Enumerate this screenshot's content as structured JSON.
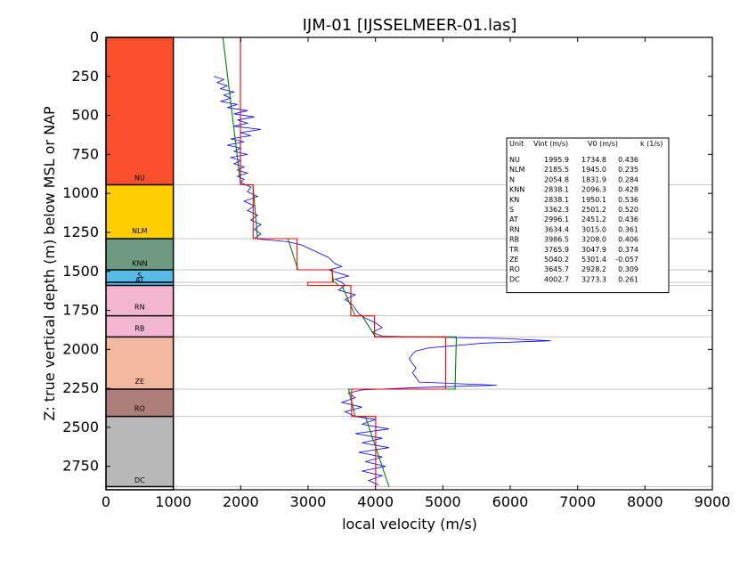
{
  "chart_data": {
    "type": "line",
    "title": "IJM-01 [IJSSELMEER-01.las]",
    "xlabel": "local velocity (m/s)",
    "ylabel": "Z: true vertical depth (m) below MSL or NAP",
    "xlim": [
      0,
      9000
    ],
    "ylim": [
      2900,
      0
    ],
    "x_ticks": [
      "0",
      "1000",
      "2000",
      "3000",
      "4000",
      "5000",
      "6000",
      "7000",
      "8000",
      "9000"
    ],
    "y_ticks": [
      "0",
      "250",
      "500",
      "750",
      "1000",
      "1250",
      "1500",
      "1750",
      "2000",
      "2250",
      "2500",
      "2750"
    ],
    "y_inverted": true,
    "units": [
      {
        "unit": "NU",
        "top": 0,
        "bottom": 945,
        "color": "#fb4e2a",
        "vint": 1995.9,
        "v0": 1734.8,
        "k": 0.436
      },
      {
        "unit": "NLM",
        "top": 945,
        "bottom": 1290,
        "color": "#fdce00",
        "vint": 2185.5,
        "v0": 1945.0,
        "k": 0.235
      },
      {
        "unit": "N",
        "top": 945,
        "bottom": 1290,
        "color": "#fdce00",
        "vint": 2054.8,
        "v0": 1831.9,
        "k": 0.284
      },
      {
        "unit": "KNN",
        "top": 1290,
        "bottom": 1490,
        "color": "#6f9a82",
        "vint": 2838.1,
        "v0": 2096.3,
        "k": 0.428
      },
      {
        "unit": "KN",
        "top": 1290,
        "bottom": 1490,
        "color": "#6f9a82",
        "vint": 2838.1,
        "v0": 1950.1,
        "k": 0.536
      },
      {
        "unit": "S",
        "top": 1490,
        "bottom": 1570,
        "color": "#5bbbe8",
        "vint": 3362.3,
        "v0": 2501.2,
        "k": 0.52
      },
      {
        "unit": "AT",
        "top": 1570,
        "bottom": 1590,
        "color": "#5bbbe8",
        "vint": 2996.1,
        "v0": 2451.2,
        "k": 0.436
      },
      {
        "unit": "RN",
        "top": 1590,
        "bottom": 1785,
        "color": "#f2b6d0",
        "vint": 3634.4,
        "v0": 3015.0,
        "k": 0.361
      },
      {
        "unit": "RB",
        "top": 1785,
        "bottom": 1920,
        "color": "#f2b6d0",
        "vint": 3986.5,
        "v0": 3208.0,
        "k": 0.406
      },
      {
        "unit": "TR",
        "top": 1785,
        "bottom": 1920,
        "color": "#f2b6d0",
        "vint": 3765.9,
        "v0": 3047.9,
        "k": 0.374
      },
      {
        "unit": "ZE",
        "top": 1920,
        "bottom": 2255,
        "color": "#f2b8a0",
        "vint": 5040.2,
        "v0": 5301.4,
        "k": -0.057
      },
      {
        "unit": "RO",
        "top": 2255,
        "bottom": 2430,
        "color": "#ae7e7a",
        "vint": 3645.7,
        "v0": 2928.2,
        "k": 0.309
      },
      {
        "unit": "DC",
        "top": 2430,
        "bottom": 2880,
        "color": "#b8b8b8",
        "vint": 4002.7,
        "v0": 3273.3,
        "k": 0.261
      }
    ],
    "strip_labels": [
      {
        "text": "NU",
        "depth": 915
      },
      {
        "text": "NLM",
        "depth": 1255
      },
      {
        "text": "KNN",
        "depth": 1465
      },
      {
        "text": "S",
        "depth": 1540
      },
      {
        "text": "AT",
        "depth": 1570
      },
      {
        "text": "RN",
        "depth": 1745
      },
      {
        "text": "RB",
        "depth": 1880
      },
      {
        "text": "ZE",
        "depth": 2220
      },
      {
        "text": "RO",
        "depth": 2395
      },
      {
        "text": "DC",
        "depth": 2855
      }
    ],
    "strip_boundaries": [
      945,
      1290,
      1490,
      1570,
      1590,
      1785,
      1920,
      2255,
      2430,
      2880
    ],
    "series": [
      {
        "color": "#0000ff",
        "points": [
          [
            1600,
            250
          ],
          [
            1750,
            270
          ],
          [
            1650,
            290
          ],
          [
            1800,
            310
          ],
          [
            1700,
            330
          ],
          [
            1900,
            350
          ],
          [
            1750,
            370
          ],
          [
            1850,
            390
          ],
          [
            1700,
            410
          ],
          [
            1950,
            430
          ],
          [
            1800,
            450
          ],
          [
            2100,
            470
          ],
          [
            1900,
            490
          ],
          [
            2200,
            510
          ],
          [
            1950,
            530
          ],
          [
            2100,
            550
          ],
          [
            1900,
            570
          ],
          [
            2300,
            590
          ],
          [
            2000,
            610
          ],
          [
            2150,
            630
          ],
          [
            1850,
            650
          ],
          [
            2050,
            670
          ],
          [
            1800,
            690
          ],
          [
            2000,
            710
          ],
          [
            1900,
            730
          ],
          [
            2100,
            750
          ],
          [
            1850,
            770
          ],
          [
            2000,
            790
          ],
          [
            1900,
            810
          ],
          [
            2050,
            830
          ],
          [
            1950,
            850
          ],
          [
            2100,
            870
          ],
          [
            1950,
            890
          ],
          [
            2050,
            910
          ],
          [
            2000,
            930
          ],
          [
            2150,
            960
          ],
          [
            2100,
            990
          ],
          [
            2250,
            1020
          ],
          [
            2050,
            1050
          ],
          [
            2200,
            1080
          ],
          [
            2100,
            1110
          ],
          [
            2250,
            1140
          ],
          [
            2150,
            1170
          ],
          [
            2300,
            1200
          ],
          [
            2200,
            1230
          ],
          [
            2300,
            1260
          ],
          [
            2200,
            1290
          ],
          [
            2700,
            1310
          ],
          [
            2900,
            1330
          ],
          [
            3000,
            1350
          ],
          [
            3100,
            1370
          ],
          [
            3200,
            1390
          ],
          [
            3300,
            1410
          ],
          [
            3350,
            1430
          ],
          [
            3400,
            1450
          ],
          [
            3500,
            1470
          ],
          [
            3300,
            1490
          ],
          [
            3450,
            1510
          ],
          [
            3600,
            1530
          ],
          [
            3400,
            1550
          ],
          [
            3500,
            1570
          ],
          [
            3550,
            1590
          ],
          [
            3450,
            1620
          ],
          [
            3700,
            1650
          ],
          [
            3550,
            1680
          ],
          [
            3650,
            1710
          ],
          [
            3700,
            1740
          ],
          [
            3750,
            1770
          ],
          [
            3850,
            1800
          ],
          [
            4000,
            1830
          ],
          [
            4100,
            1860
          ],
          [
            3950,
            1890
          ],
          [
            4100,
            1915
          ],
          [
            5900,
            1930
          ],
          [
            6600,
            1945
          ],
          [
            5600,
            1960
          ],
          [
            5200,
            1975
          ],
          [
            4800,
            1990
          ],
          [
            4600,
            2010
          ],
          [
            4550,
            2030
          ],
          [
            4500,
            2060
          ],
          [
            4550,
            2090
          ],
          [
            4600,
            2120
          ],
          [
            4550,
            2150
          ],
          [
            4600,
            2180
          ],
          [
            4650,
            2210
          ],
          [
            5800,
            2230
          ],
          [
            4600,
            2245
          ],
          [
            3800,
            2260
          ],
          [
            3600,
            2280
          ],
          [
            3700,
            2310
          ],
          [
            3500,
            2340
          ],
          [
            3800,
            2370
          ],
          [
            3550,
            2400
          ],
          [
            3700,
            2430
          ],
          [
            4000,
            2450
          ],
          [
            3800,
            2480
          ],
          [
            4200,
            2510
          ],
          [
            3700,
            2540
          ],
          [
            4100,
            2570
          ],
          [
            3800,
            2600
          ],
          [
            4200,
            2630
          ],
          [
            3750,
            2660
          ],
          [
            4100,
            2690
          ],
          [
            3850,
            2720
          ],
          [
            4150,
            2750
          ],
          [
            3800,
            2780
          ],
          [
            4100,
            2810
          ],
          [
            3900,
            2840
          ],
          [
            4050,
            2870
          ]
        ]
      },
      {
        "color": "#008000",
        "points": [
          [
            1735,
            0
          ],
          [
            2000,
            945
          ],
          [
            2180,
            945
          ],
          [
            2250,
            1290
          ],
          [
            2700,
            1290
          ],
          [
            2850,
            1490
          ],
          [
            3350,
            1490
          ],
          [
            3380,
            1570
          ],
          [
            3400,
            1570
          ],
          [
            3450,
            1590
          ],
          [
            3500,
            1590
          ],
          [
            3700,
            1785
          ],
          [
            3800,
            1785
          ],
          [
            4000,
            1920
          ],
          [
            5200,
            1920
          ],
          [
            5180,
            2255
          ],
          [
            3600,
            2255
          ],
          [
            3700,
            2430
          ],
          [
            3850,
            2430
          ],
          [
            4200,
            2880
          ]
        ]
      },
      {
        "color": "#ff0000",
        "points": [
          [
            1996,
            0
          ],
          [
            1996,
            945
          ],
          [
            2185,
            945
          ],
          [
            2185,
            1290
          ],
          [
            2838,
            1290
          ],
          [
            2838,
            1490
          ],
          [
            3362,
            1490
          ],
          [
            3362,
            1570
          ],
          [
            2996,
            1570
          ],
          [
            2996,
            1590
          ],
          [
            3634,
            1590
          ],
          [
            3634,
            1785
          ],
          [
            3986,
            1785
          ],
          [
            3986,
            1920
          ],
          [
            5040,
            1920
          ],
          [
            5040,
            2255
          ],
          [
            3646,
            2255
          ],
          [
            3646,
            2430
          ],
          [
            4003,
            2430
          ],
          [
            4003,
            2880
          ]
        ]
      }
    ],
    "legend_table": {
      "position": "right, upper middle",
      "headers": [
        "Unit",
        "Vint (m/s)",
        "V0 (m/s)",
        "k (1/s)"
      ],
      "rows": [
        [
          "NU",
          "1995.9",
          "1734.8",
          "0.436"
        ],
        [
          "NLM",
          "2185.5",
          "1945.0",
          "0.235"
        ],
        [
          "N",
          "2054.8",
          "1831.9",
          "0.284"
        ],
        [
          "KNN",
          "2838.1",
          "2096.3",
          "0.428"
        ],
        [
          "KN",
          "2838.1",
          "1950.1",
          "0.536"
        ],
        [
          "S",
          "3362.3",
          "2501.2",
          "0.520"
        ],
        [
          "AT",
          "2996.1",
          "2451.2",
          "0.436"
        ],
        [
          "RN",
          "3634.4",
          "3015.0",
          "0.361"
        ],
        [
          "RB",
          "3986.5",
          "3208.0",
          "0.406"
        ],
        [
          "TR",
          "3765.9",
          "3047.9",
          "0.374"
        ],
        [
          "ZE",
          "5040.2",
          "5301.4",
          "-0.057"
        ],
        [
          "RO",
          "3645.7",
          "2928.2",
          "0.309"
        ],
        [
          "DC",
          "4002.7",
          "3273.3",
          "0.261"
        ]
      ]
    }
  }
}
